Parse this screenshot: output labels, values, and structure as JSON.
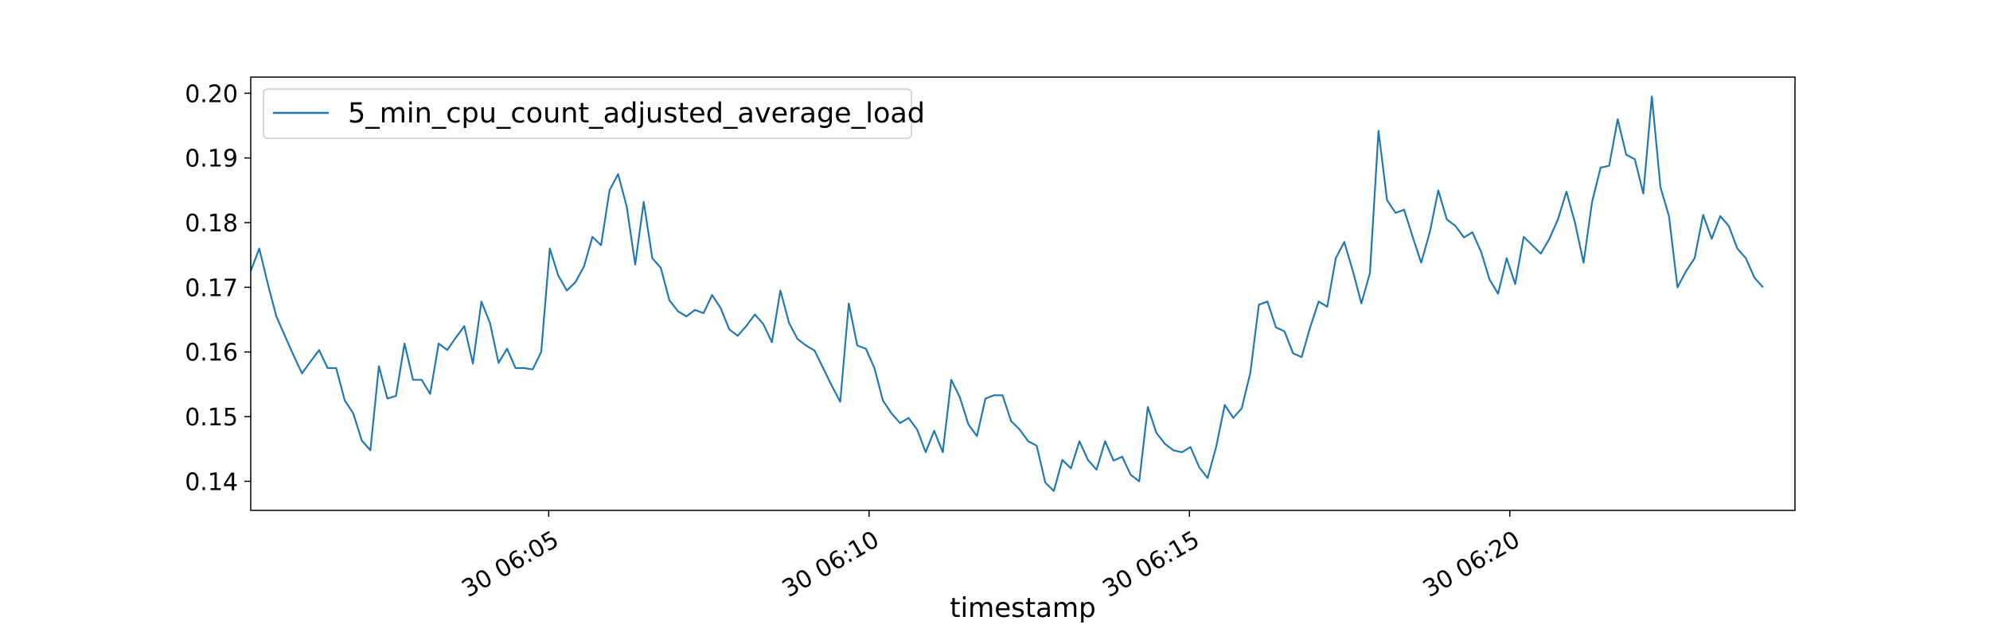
{
  "chart_data": {
    "type": "line",
    "xlabel": "timestamp",
    "ylabel": "",
    "title": "",
    "grid": false,
    "legend_placement": "top-left",
    "x_range_minutes": [
      0.35,
      24.45
    ],
    "ylim": [
      0.1355,
      0.2025
    ],
    "y_ticks": [
      0.14,
      0.15,
      0.16,
      0.17,
      0.18,
      0.19,
      0.2
    ],
    "y_tick_labels": [
      "0.14",
      "0.15",
      "0.16",
      "0.17",
      "0.18",
      "0.19",
      "0.20"
    ],
    "x_ticks_minutes": [
      5,
      10,
      15,
      20
    ],
    "x_tick_labels": [
      "30 06:05",
      "30 06:10",
      "30 06:15",
      "30 06:20"
    ],
    "x_start_time": "30 06:00:21",
    "x_step_seconds": 8,
    "series": [
      {
        "name": "5_min_cpu_count_adjusted_average_load",
        "color": "#1f77b4",
        "values": [
          0.1725,
          0.176,
          0.1705,
          0.1655,
          0.1625,
          0.1595,
          0.1567,
          0.1585,
          0.1603,
          0.1575,
          0.1575,
          0.1525,
          0.1505,
          0.1463,
          0.1448,
          0.1578,
          0.1528,
          0.1532,
          0.1613,
          0.1557,
          0.1557,
          0.1535,
          0.1613,
          0.1603,
          0.1622,
          0.164,
          0.1582,
          0.1678,
          0.1645,
          0.1583,
          0.1605,
          0.1575,
          0.1575,
          0.1573,
          0.16,
          0.176,
          0.1718,
          0.1695,
          0.1708,
          0.1732,
          0.1778,
          0.1765,
          0.185,
          0.1875,
          0.1825,
          0.1735,
          0.1832,
          0.1745,
          0.173,
          0.168,
          0.1663,
          0.1655,
          0.1665,
          0.166,
          0.1688,
          0.1668,
          0.1635,
          0.1625,
          0.164,
          0.1658,
          0.1643,
          0.1615,
          0.1695,
          0.1645,
          0.162,
          0.161,
          0.1602,
          0.1575,
          0.1548,
          0.1523,
          0.1675,
          0.161,
          0.1605,
          0.1575,
          0.1525,
          0.1505,
          0.149,
          0.1498,
          0.148,
          0.1445,
          0.1478,
          0.1445,
          0.1557,
          0.153,
          0.1488,
          0.147,
          0.1528,
          0.1533,
          0.1533,
          0.1493,
          0.148,
          0.1462,
          0.1455,
          0.1398,
          0.1385,
          0.1433,
          0.142,
          0.1462,
          0.1433,
          0.1418,
          0.1462,
          0.1432,
          0.1438,
          0.141,
          0.14,
          0.1515,
          0.1475,
          0.1458,
          0.1448,
          0.1445,
          0.1453,
          0.1422,
          0.1405,
          0.1453,
          0.1518,
          0.1498,
          0.1513,
          0.1568,
          0.1673,
          0.1678,
          0.1638,
          0.1632,
          0.1598,
          0.1592,
          0.1638,
          0.1678,
          0.167,
          0.1745,
          0.177,
          0.1725,
          0.1675,
          0.1722,
          0.1942,
          0.1835,
          0.1815,
          0.182,
          0.1778,
          0.1738,
          0.1785,
          0.185,
          0.1805,
          0.1795,
          0.1777,
          0.1785,
          0.1755,
          0.1712,
          0.169,
          0.1745,
          0.1705,
          0.1778,
          0.1765,
          0.1752,
          0.1775,
          0.1805,
          0.1848,
          0.18,
          0.1738,
          0.1832,
          0.1885,
          0.1888,
          0.196,
          0.1905,
          0.1898,
          0.1845,
          0.1995,
          0.1855,
          0.181,
          0.17,
          0.1725,
          0.1745,
          0.1812,
          0.1775,
          0.181,
          0.1795,
          0.176,
          0.1745,
          0.1715,
          0.17
        ]
      }
    ]
  }
}
